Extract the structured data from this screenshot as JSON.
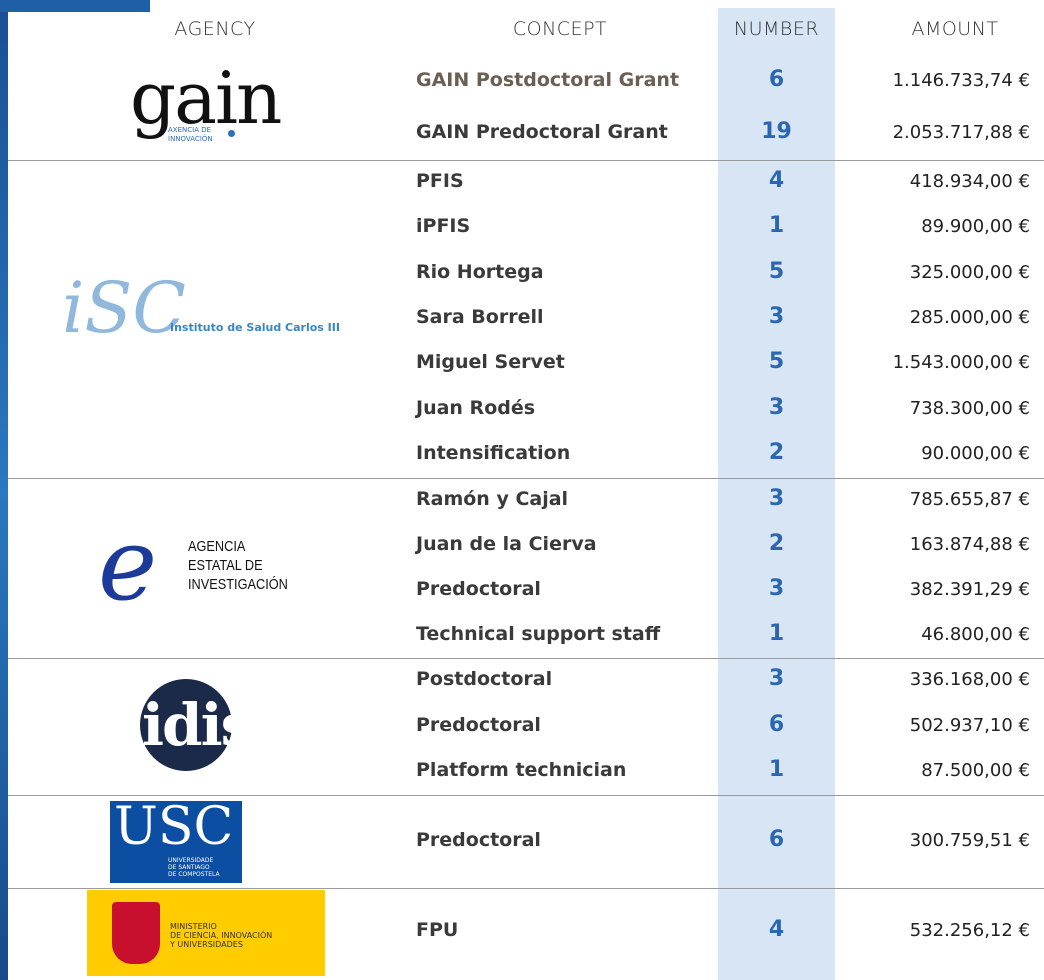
{
  "header": {
    "agency": "AGENCY",
    "concept": "CONCEPT",
    "number": "NUMBER",
    "amount": "AMOUNT"
  },
  "groups": [
    {
      "logo": [
        "gain",
        "AXENCIA DE",
        "INNOVACIÓN"
      ],
      "rows": [
        {
          "concept": "GAIN Postdoctoral Grant",
          "number": 6,
          "amount": "1.146.733,74 €"
        },
        {
          "concept": "GAIN Predoctoral  Grant",
          "number": 19,
          "amount": "2.053.717,88 €"
        }
      ]
    },
    {
      "logo": [
        "iSC",
        "Instituto de Salud Carlos III"
      ],
      "rows": [
        {
          "concept": "PFIS",
          "number": 4,
          "amount": "418.934,00 €"
        },
        {
          "concept": "iPFIS",
          "number": 1,
          "amount": "89.900,00 €"
        },
        {
          "concept": "Rio Hortega",
          "number": 5,
          "amount": "325.000,00 €"
        },
        {
          "concept": "Sara Borrell",
          "number": 3,
          "amount": "285.000,00 €"
        },
        {
          "concept": "Miguel Servet",
          "number": 5,
          "amount": "1.543.000,00 €"
        },
        {
          "concept": "Juan Rodés",
          "number": 3,
          "amount": "738.300,00 €"
        },
        {
          "concept": "Intensification",
          "number": 2,
          "amount": "90.000,00 €"
        }
      ]
    },
    {
      "logo": [
        "e",
        "AGENCIA",
        "ESTATAL DE",
        "INVESTIGACIÓN"
      ],
      "rows": [
        {
          "concept": "Ramón y Cajal",
          "number": 3,
          "amount": "785.655,87 €"
        },
        {
          "concept": "Juan de la Cierva",
          "number": 2,
          "amount": "163.874,88 €"
        },
        {
          "concept": "Predoctoral",
          "number": 3,
          "amount": "382.391,29 €"
        },
        {
          "concept": "Technical support staff",
          "number": 1,
          "amount": "46.800,00 €"
        }
      ]
    },
    {
      "logo": [
        "idis"
      ],
      "rows": [
        {
          "concept": "Postdoctoral",
          "number": 3,
          "amount": "336.168,00 €"
        },
        {
          "concept": "Predoctoral",
          "number": 6,
          "amount": "502.937,10 €"
        },
        {
          "concept": "Platform technician",
          "number": 1,
          "amount": "87.500,00 €"
        }
      ]
    },
    {
      "logo": [
        "USC",
        "UNIVERSIDADE",
        "DE SANTIAGO",
        "DE COMPOSTELA"
      ],
      "rows": [
        {
          "concept": "Predoctoral",
          "number": 6,
          "amount": "300.759,51 €"
        }
      ]
    },
    {
      "logo": [
        "MINISTERIO",
        "DE CIENCIA, INNOVACIÓN",
        "Y UNIVERSIDADES"
      ],
      "rows": [
        {
          "concept": "FPU",
          "number": 4,
          "amount": "532.256,12 €"
        }
      ]
    }
  ]
}
